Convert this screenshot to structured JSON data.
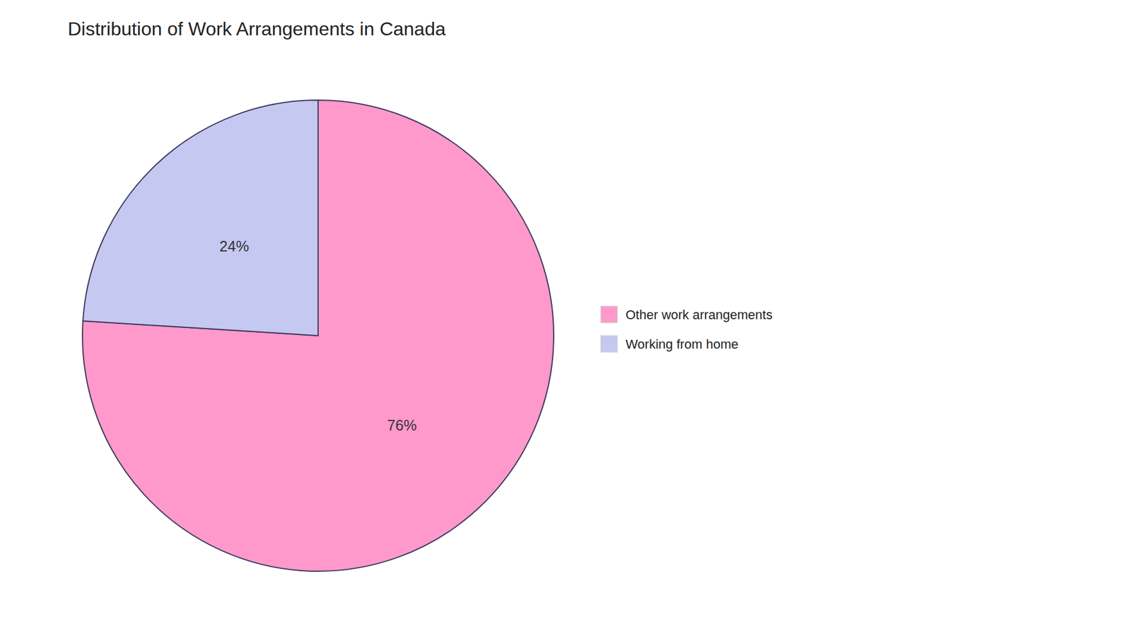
{
  "chart_data": {
    "type": "pie",
    "title": "Distribution of Work Arrangements in Canada",
    "categories": [
      "Other work arrangements",
      "Working from home"
    ],
    "values": [
      76,
      24
    ],
    "value_labels": [
      "76%",
      "24%"
    ],
    "colors": [
      "#FF99CC",
      "#C5C8F0"
    ],
    "data_labels": true,
    "legend": "right"
  }
}
